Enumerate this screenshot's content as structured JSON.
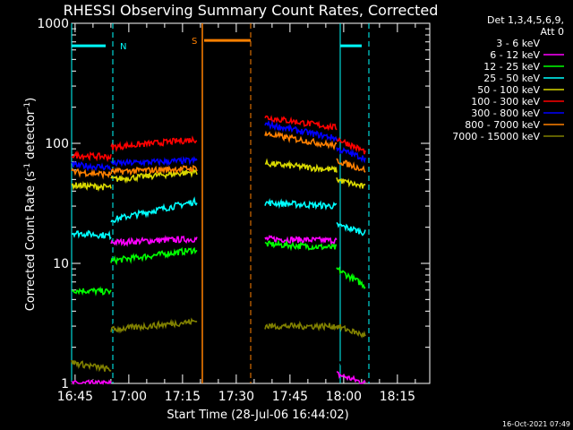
{
  "chart_data": {
    "type": "line",
    "title": "RHESSI Observing Summary Count Rates, Corrected",
    "xlabel": "Start Time (28-Jul-06 16:44:02)",
    "ylabel_main": "Corrected Count Rate (s",
    "ylabel_sup1": "-1",
    "ylabel_mid": " detector",
    "ylabel_sup2": "-1",
    "ylabel_end": ")",
    "yscale": "log",
    "ylim": [
      1,
      1000
    ],
    "xlim_min": [
      0,
      100
    ],
    "x_unit": "minutes after 16:44:02",
    "y_ticks": [
      1,
      10,
      100,
      1000
    ],
    "y_tick_labels": [
      "1",
      "10",
      "100",
      "1000"
    ],
    "x_ticks_min": [
      0.97,
      15.97,
      30.97,
      45.97,
      60.97,
      75.97,
      90.97
    ],
    "x_tick_labels": [
      "16:45",
      "17:00",
      "17:15",
      "17:30",
      "17:45",
      "18:00",
      "18:15"
    ],
    "legend_header": [
      "Det 1,3,4,5,6,9,",
      "Att 0"
    ],
    "legend_position": "top-right outside",
    "timestamp": "16-Oct-2021 07:49",
    "night_label": "N",
    "saa_label": "S",
    "series": [
      {
        "name": "3 - 6 keV",
        "color": "#000000",
        "seg1": {
          "t0": 0,
          "t1": 11,
          "v0": 1.0,
          "v1": 1.0
        },
        "seg2": {
          "t0": 11,
          "t1": 35,
          "v0": 3.0,
          "v1": 3.5
        },
        "seg3": {
          "t0": 54,
          "t1": 74,
          "v0": 3.5,
          "v1": 3.2
        },
        "seg4": {
          "t0": 74,
          "t1": 82,
          "v0": 1.5,
          "v1": 1.2
        }
      },
      {
        "name": "6 - 12 keV",
        "color": "#ff00ff",
        "seg1": {
          "t0": 0,
          "t1": 11,
          "v0": 1.0,
          "v1": 1.0
        },
        "seg2": {
          "t0": 11,
          "t1": 35,
          "v0": 15,
          "v1": 16
        },
        "seg3": {
          "t0": 54,
          "t1": 74,
          "v0": 16,
          "v1": 15.5
        },
        "seg4": {
          "t0": 74,
          "t1": 82,
          "v0": 1.2,
          "v1": 1.0
        }
      },
      {
        "name": "12 - 25 keV",
        "color": "#00ff00",
        "seg1": {
          "t0": 0,
          "t1": 11,
          "v0": 6.0,
          "v1": 5.8
        },
        "seg2": {
          "t0": 11,
          "t1": 35,
          "v0": 10.5,
          "v1": 13
        },
        "seg3": {
          "t0": 54,
          "t1": 74,
          "v0": 14.5,
          "v1": 13.5
        },
        "seg4": {
          "t0": 74,
          "t1": 82,
          "v0": 9,
          "v1": 6.5
        }
      },
      {
        "name": "25 - 50 keV",
        "color": "#00ffff",
        "seg1": {
          "t0": 0,
          "t1": 11,
          "v0": 18,
          "v1": 17
        },
        "seg2": {
          "t0": 11,
          "t1": 35,
          "v0": 23,
          "v1": 33
        },
        "seg3": {
          "t0": 54,
          "t1": 74,
          "v0": 32,
          "v1": 30
        },
        "seg4": {
          "t0": 74,
          "t1": 82,
          "v0": 21,
          "v1": 18
        }
      },
      {
        "name": "50 - 100 keV",
        "color": "#d8d800",
        "seg1": {
          "t0": 0,
          "t1": 11,
          "v0": 45,
          "v1": 43
        },
        "seg2": {
          "t0": 11,
          "t1": 35,
          "v0": 50,
          "v1": 58
        },
        "seg3": {
          "t0": 54,
          "t1": 74,
          "v0": 68,
          "v1": 60
        },
        "seg4": {
          "t0": 74,
          "t1": 82,
          "v0": 50,
          "v1": 43
        }
      },
      {
        "name": "100 - 300 keV",
        "color": "#ff0000",
        "seg1": {
          "t0": 0,
          "t1": 11,
          "v0": 80,
          "v1": 77
        },
        "seg2": {
          "t0": 11,
          "t1": 35,
          "v0": 93,
          "v1": 108
        },
        "seg3": {
          "t0": 54,
          "t1": 74,
          "v0": 165,
          "v1": 135
        },
        "seg4": {
          "t0": 74,
          "t1": 82,
          "v0": 110,
          "v1": 85
        }
      },
      {
        "name": "300 - 800 keV",
        "color": "#0000ff",
        "seg1": {
          "t0": 0,
          "t1": 11,
          "v0": 66,
          "v1": 63
        },
        "seg2": {
          "t0": 11,
          "t1": 35,
          "v0": 68,
          "v1": 72
        },
        "seg3": {
          "t0": 54,
          "t1": 74,
          "v0": 145,
          "v1": 110
        },
        "seg4": {
          "t0": 74,
          "t1": 82,
          "v0": 90,
          "v1": 75
        }
      },
      {
        "name": "800 - 7000 keV",
        "color": "#ff8000",
        "seg1": {
          "t0": 0,
          "t1": 11,
          "v0": 58,
          "v1": 55
        },
        "seg2": {
          "t0": 11,
          "t1": 35,
          "v0": 58,
          "v1": 62
        },
        "seg3": {
          "t0": 54,
          "t1": 74,
          "v0": 120,
          "v1": 95
        },
        "seg4": {
          "t0": 74,
          "t1": 82,
          "v0": 72,
          "v1": 60
        }
      },
      {
        "name": "7000 - 15000 keV",
        "color": "#808000",
        "seg1": {
          "t0": 0,
          "t1": 11,
          "v0": 1.5,
          "v1": 1.3
        },
        "seg2": {
          "t0": 11,
          "t1": 35,
          "v0": 2.8,
          "v1": 3.3
        },
        "seg3": {
          "t0": 54,
          "t1": 74,
          "v0": 3.0,
          "v1": 3.0
        },
        "seg4": {
          "t0": 74,
          "t1": 82,
          "v0": 3.0,
          "v1": 2.5
        }
      }
    ],
    "flags": {
      "night": [
        {
          "t0": 0,
          "t1": 11.5
        },
        {
          "t0": 75,
          "t1": 83
        }
      ],
      "saa": [
        {
          "t0": 36.5,
          "t1": 50
        }
      ]
    }
  }
}
